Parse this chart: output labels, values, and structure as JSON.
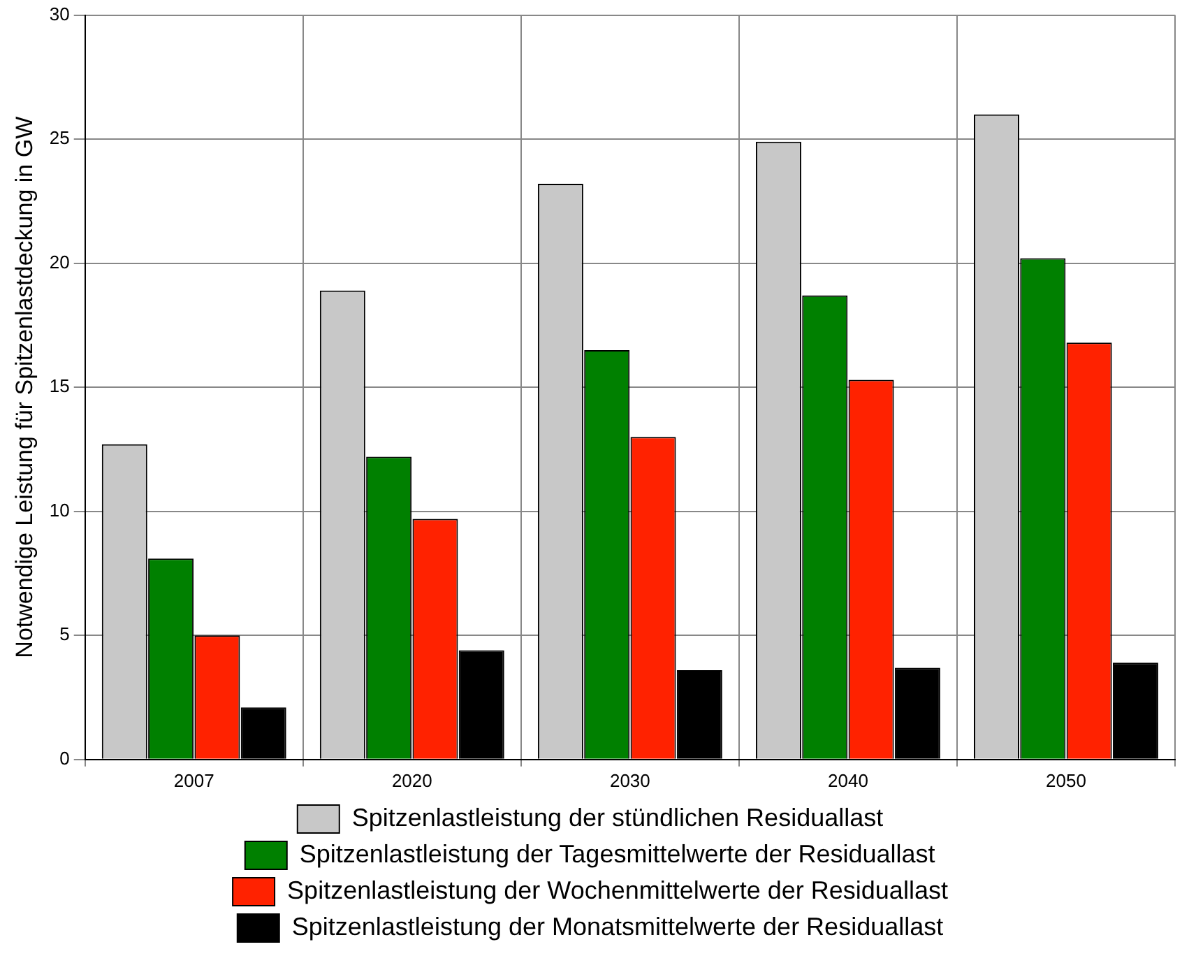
{
  "chart_data": {
    "type": "bar",
    "ylabel": "Notwendige Leistung für Spitzenlastdeckung in GW",
    "categories": [
      "2007",
      "2020",
      "2030",
      "2040",
      "2050"
    ],
    "series": [
      {
        "name": "Spitzenlastleistung der stündlichen Residuallast",
        "color": "#c8c8c8",
        "values": [
          12.7,
          18.9,
          23.2,
          24.9,
          26.0
        ]
      },
      {
        "name": "Spitzenlastleistung der Tagesmittelwerte der Residuallast",
        "color": "#008000",
        "values": [
          8.1,
          12.2,
          16.5,
          18.7,
          20.2
        ]
      },
      {
        "name": "Spitzenlastleistung der Wochenmittelwerte der Residuallast",
        "color": "#ff2200",
        "values": [
          5.0,
          9.7,
          13.0,
          15.3,
          16.8
        ]
      },
      {
        "name": "Spitzenlastleistung der Monatsmittelwerte der Residuallast",
        "color": "#000000",
        "values": [
          2.1,
          4.4,
          3.6,
          3.7,
          3.9
        ]
      }
    ],
    "ylim": [
      0,
      30
    ],
    "yticks": [
      0,
      5,
      10,
      15,
      20,
      25,
      30
    ],
    "grid": true,
    "legend": "bottom"
  }
}
